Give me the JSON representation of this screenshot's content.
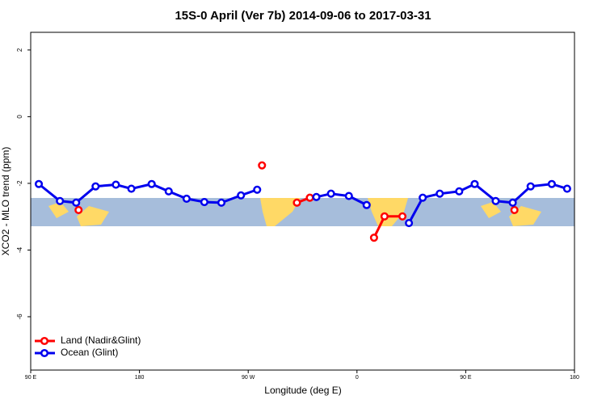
{
  "chart_data": {
    "type": "line",
    "title": "15S-0 April (Ver 7b)   2014-09-06 to 2017-03-31",
    "xlabel": "Longitude (deg E)",
    "ylabel": "XCO2 - MLO trend (ppm)",
    "xlim": [
      90,
      540
    ],
    "xticks": [
      {
        "value": 90,
        "label": "90 E"
      },
      {
        "value": 180,
        "label": "180"
      },
      {
        "value": 270,
        "label": "90 W"
      },
      {
        "value": 360,
        "label": "0"
      },
      {
        "value": 450,
        "label": "90 E"
      },
      {
        "value": 540,
        "label": "180"
      }
    ],
    "ylim": [
      -7.6,
      2.53
    ],
    "yticks": [
      2,
      0,
      -2,
      -4,
      -6
    ],
    "legend": "bottom-left",
    "series": [
      {
        "name": "Land (Nadir&Glint)",
        "color": "#ff0000",
        "x": [
          129.6,
          null,
          281.4,
          null,
          310.3,
          321.0,
          null,
          374.1,
          382.8,
          397.6,
          null,
          490.3
        ],
        "values": [
          -2.8,
          null,
          -1.46,
          null,
          -2.58,
          -2.43,
          null,
          -3.63,
          -2.99,
          -2.99,
          null,
          -2.8
        ]
      },
      {
        "name": "Ocean (Glint)",
        "color": "#0000ee",
        "x": [
          96.7,
          114.2,
          127.6,
          143.7,
          160.5,
          173.3,
          190.1,
          204.2,
          219.0,
          233.7,
          247.8,
          264.0,
          277.4,
          null,
          326.4,
          338.5,
          353.3,
          368.0,
          null,
          403.0,
          414.4,
          428.5,
          444.6,
          457.4,
          474.8,
          488.9,
          503.7,
          521.2,
          533.9
        ],
        "values": [
          -2.02,
          -2.53,
          -2.58,
          -2.09,
          -2.04,
          -2.16,
          -2.02,
          -2.24,
          -2.46,
          -2.56,
          -2.58,
          -2.36,
          -2.19,
          null,
          -2.41,
          -2.31,
          -2.38,
          -2.65,
          null,
          -3.19,
          -2.43,
          -2.31,
          -2.24,
          -2.02,
          -2.53,
          -2.58,
          -2.09,
          -2.02,
          -2.16
        ]
      }
    ]
  }
}
